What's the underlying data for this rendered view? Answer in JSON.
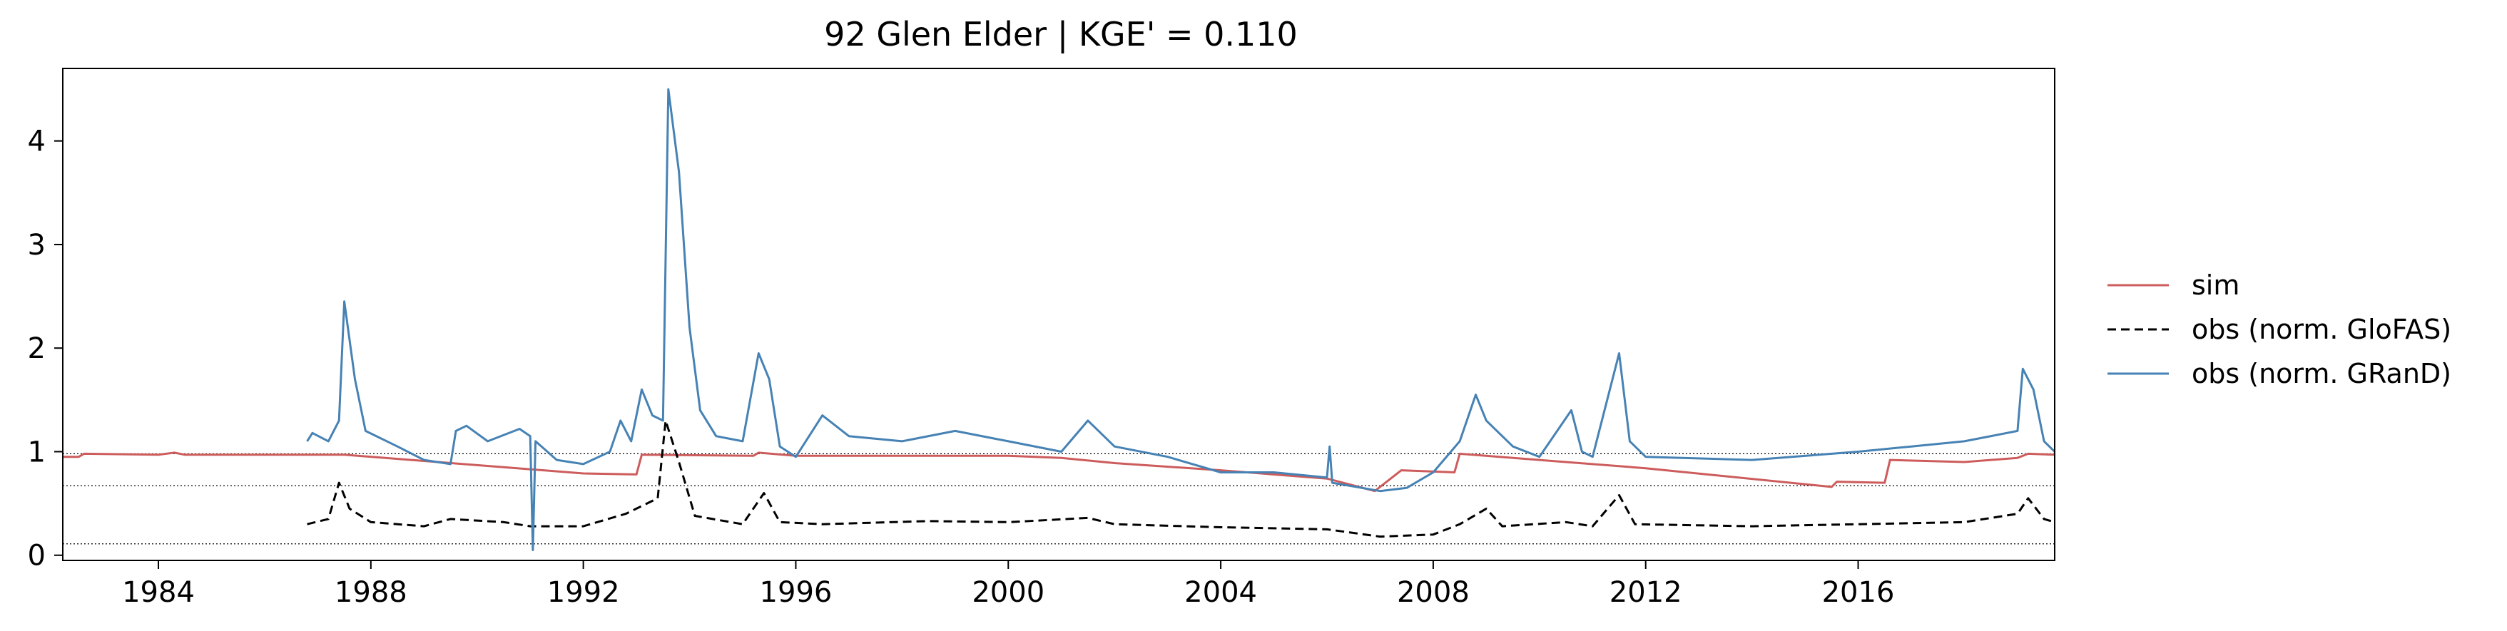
{
  "chart_data": {
    "type": "line",
    "title": "92  Glen Elder | KGE' = 0.110",
    "xlabel": "",
    "ylabel": "",
    "xlim": [
      1982.2,
      2019.7
    ],
    "ylim": [
      -0.05,
      4.7
    ],
    "x_ticks": [
      1984,
      1988,
      1992,
      1996,
      2000,
      2004,
      2008,
      2012,
      2016
    ],
    "y_ticks": [
      0,
      1,
      2,
      3,
      4
    ],
    "reference_lines": [
      0.98,
      0.67,
      0.11
    ],
    "legend_position": "right",
    "grid": false,
    "series": [
      {
        "name": "sim",
        "color": "#cd5c5c",
        "dash": "solid",
        "points": [
          [
            1982.2,
            0.95
          ],
          [
            1982.5,
            0.95
          ],
          [
            1982.6,
            0.98
          ],
          [
            1984.0,
            0.97
          ],
          [
            1984.3,
            0.99
          ],
          [
            1984.5,
            0.97
          ],
          [
            1987.5,
            0.97
          ],
          [
            1989.0,
            0.91
          ],
          [
            1990.5,
            0.85
          ],
          [
            1992.0,
            0.79
          ],
          [
            1993.0,
            0.78
          ],
          [
            1993.1,
            0.97
          ],
          [
            1995.2,
            0.96
          ],
          [
            1995.3,
            0.99
          ],
          [
            1996.0,
            0.96
          ],
          [
            2000.0,
            0.96
          ],
          [
            2001.0,
            0.94
          ],
          [
            2002.0,
            0.89
          ],
          [
            2004.0,
            0.82
          ],
          [
            2006.0,
            0.74
          ],
          [
            2006.9,
            0.62
          ],
          [
            2007.4,
            0.82
          ],
          [
            2008.4,
            0.8
          ],
          [
            2008.5,
            0.98
          ],
          [
            2010.0,
            0.92
          ],
          [
            2012.0,
            0.84
          ],
          [
            2015.5,
            0.66
          ],
          [
            2015.6,
            0.71
          ],
          [
            2016.5,
            0.7
          ],
          [
            2016.6,
            0.92
          ],
          [
            2018.0,
            0.9
          ],
          [
            2019.0,
            0.94
          ],
          [
            2019.2,
            0.98
          ],
          [
            2019.7,
            0.97
          ]
        ]
      },
      {
        "name": "obs (norm. GloFAS)",
        "color": "#000000",
        "dash": "dashed",
        "points": [
          [
            1986.8,
            0.3
          ],
          [
            1987.2,
            0.35
          ],
          [
            1987.4,
            0.7
          ],
          [
            1987.6,
            0.45
          ],
          [
            1988.0,
            0.32
          ],
          [
            1989.0,
            0.28
          ],
          [
            1989.5,
            0.35
          ],
          [
            1990.5,
            0.32
          ],
          [
            1991.0,
            0.28
          ],
          [
            1992.0,
            0.28
          ],
          [
            1992.8,
            0.4
          ],
          [
            1993.4,
            0.55
          ],
          [
            1993.55,
            1.3
          ],
          [
            1993.8,
            0.9
          ],
          [
            1994.1,
            0.38
          ],
          [
            1995.0,
            0.3
          ],
          [
            1995.4,
            0.6
          ],
          [
            1995.7,
            0.32
          ],
          [
            1996.5,
            0.3
          ],
          [
            1998.5,
            0.33
          ],
          [
            2000.0,
            0.32
          ],
          [
            2001.5,
            0.36
          ],
          [
            2002.0,
            0.3
          ],
          [
            2004.0,
            0.27
          ],
          [
            2006.0,
            0.25
          ],
          [
            2007.0,
            0.18
          ],
          [
            2008.0,
            0.2
          ],
          [
            2008.5,
            0.3
          ],
          [
            2009.0,
            0.45
          ],
          [
            2009.3,
            0.28
          ],
          [
            2010.5,
            0.32
          ],
          [
            2011.0,
            0.28
          ],
          [
            2011.5,
            0.58
          ],
          [
            2011.8,
            0.3
          ],
          [
            2014.0,
            0.28
          ],
          [
            2016.0,
            0.3
          ],
          [
            2018.0,
            0.32
          ],
          [
            2019.0,
            0.4
          ],
          [
            2019.2,
            0.55
          ],
          [
            2019.5,
            0.35
          ],
          [
            2019.7,
            0.32
          ]
        ]
      },
      {
        "name": "obs (norm. GRanD)",
        "color": "#4682b4",
        "dash": "solid",
        "points": [
          [
            1986.8,
            1.1
          ],
          [
            1986.9,
            1.18
          ],
          [
            1987.2,
            1.1
          ],
          [
            1987.4,
            1.3
          ],
          [
            1987.5,
            2.45
          ],
          [
            1987.7,
            1.7
          ],
          [
            1987.9,
            1.2
          ],
          [
            1988.5,
            1.05
          ],
          [
            1989.0,
            0.92
          ],
          [
            1989.5,
            0.88
          ],
          [
            1989.6,
            1.2
          ],
          [
            1989.8,
            1.25
          ],
          [
            1990.2,
            1.1
          ],
          [
            1990.8,
            1.22
          ],
          [
            1991.0,
            1.15
          ],
          [
            1991.05,
            0.05
          ],
          [
            1991.1,
            1.1
          ],
          [
            1991.5,
            0.92
          ],
          [
            1992.0,
            0.88
          ],
          [
            1992.5,
            1.0
          ],
          [
            1992.7,
            1.3
          ],
          [
            1992.9,
            1.1
          ],
          [
            1993.1,
            1.6
          ],
          [
            1993.3,
            1.35
          ],
          [
            1993.5,
            1.3
          ],
          [
            1993.6,
            4.5
          ],
          [
            1993.8,
            3.7
          ],
          [
            1994.0,
            2.2
          ],
          [
            1994.2,
            1.4
          ],
          [
            1994.5,
            1.15
          ],
          [
            1995.0,
            1.1
          ],
          [
            1995.3,
            1.95
          ],
          [
            1995.5,
            1.7
          ],
          [
            1995.7,
            1.05
          ],
          [
            1996.0,
            0.95
          ],
          [
            1996.5,
            1.35
          ],
          [
            1997.0,
            1.15
          ],
          [
            1998.0,
            1.1
          ],
          [
            1999.0,
            1.2
          ],
          [
            2000.0,
            1.1
          ],
          [
            2001.0,
            1.0
          ],
          [
            2001.5,
            1.3
          ],
          [
            2002.0,
            1.05
          ],
          [
            2003.0,
            0.95
          ],
          [
            2004.0,
            0.8
          ],
          [
            2005.0,
            0.8
          ],
          [
            2006.0,
            0.75
          ],
          [
            2006.05,
            1.05
          ],
          [
            2006.1,
            0.7
          ],
          [
            2007.0,
            0.62
          ],
          [
            2007.5,
            0.65
          ],
          [
            2008.0,
            0.8
          ],
          [
            2008.5,
            1.1
          ],
          [
            2008.8,
            1.55
          ],
          [
            2009.0,
            1.3
          ],
          [
            2009.5,
            1.05
          ],
          [
            2010.0,
            0.95
          ],
          [
            2010.6,
            1.4
          ],
          [
            2010.8,
            1.0
          ],
          [
            2011.0,
            0.95
          ],
          [
            2011.5,
            1.95
          ],
          [
            2011.7,
            1.1
          ],
          [
            2012.0,
            0.95
          ],
          [
            2014.0,
            0.92
          ],
          [
            2016.0,
            1.0
          ],
          [
            2017.0,
            1.05
          ],
          [
            2018.0,
            1.1
          ],
          [
            2019.0,
            1.2
          ],
          [
            2019.1,
            1.8
          ],
          [
            2019.3,
            1.6
          ],
          [
            2019.5,
            1.1
          ],
          [
            2019.7,
            1.0
          ]
        ]
      }
    ]
  }
}
